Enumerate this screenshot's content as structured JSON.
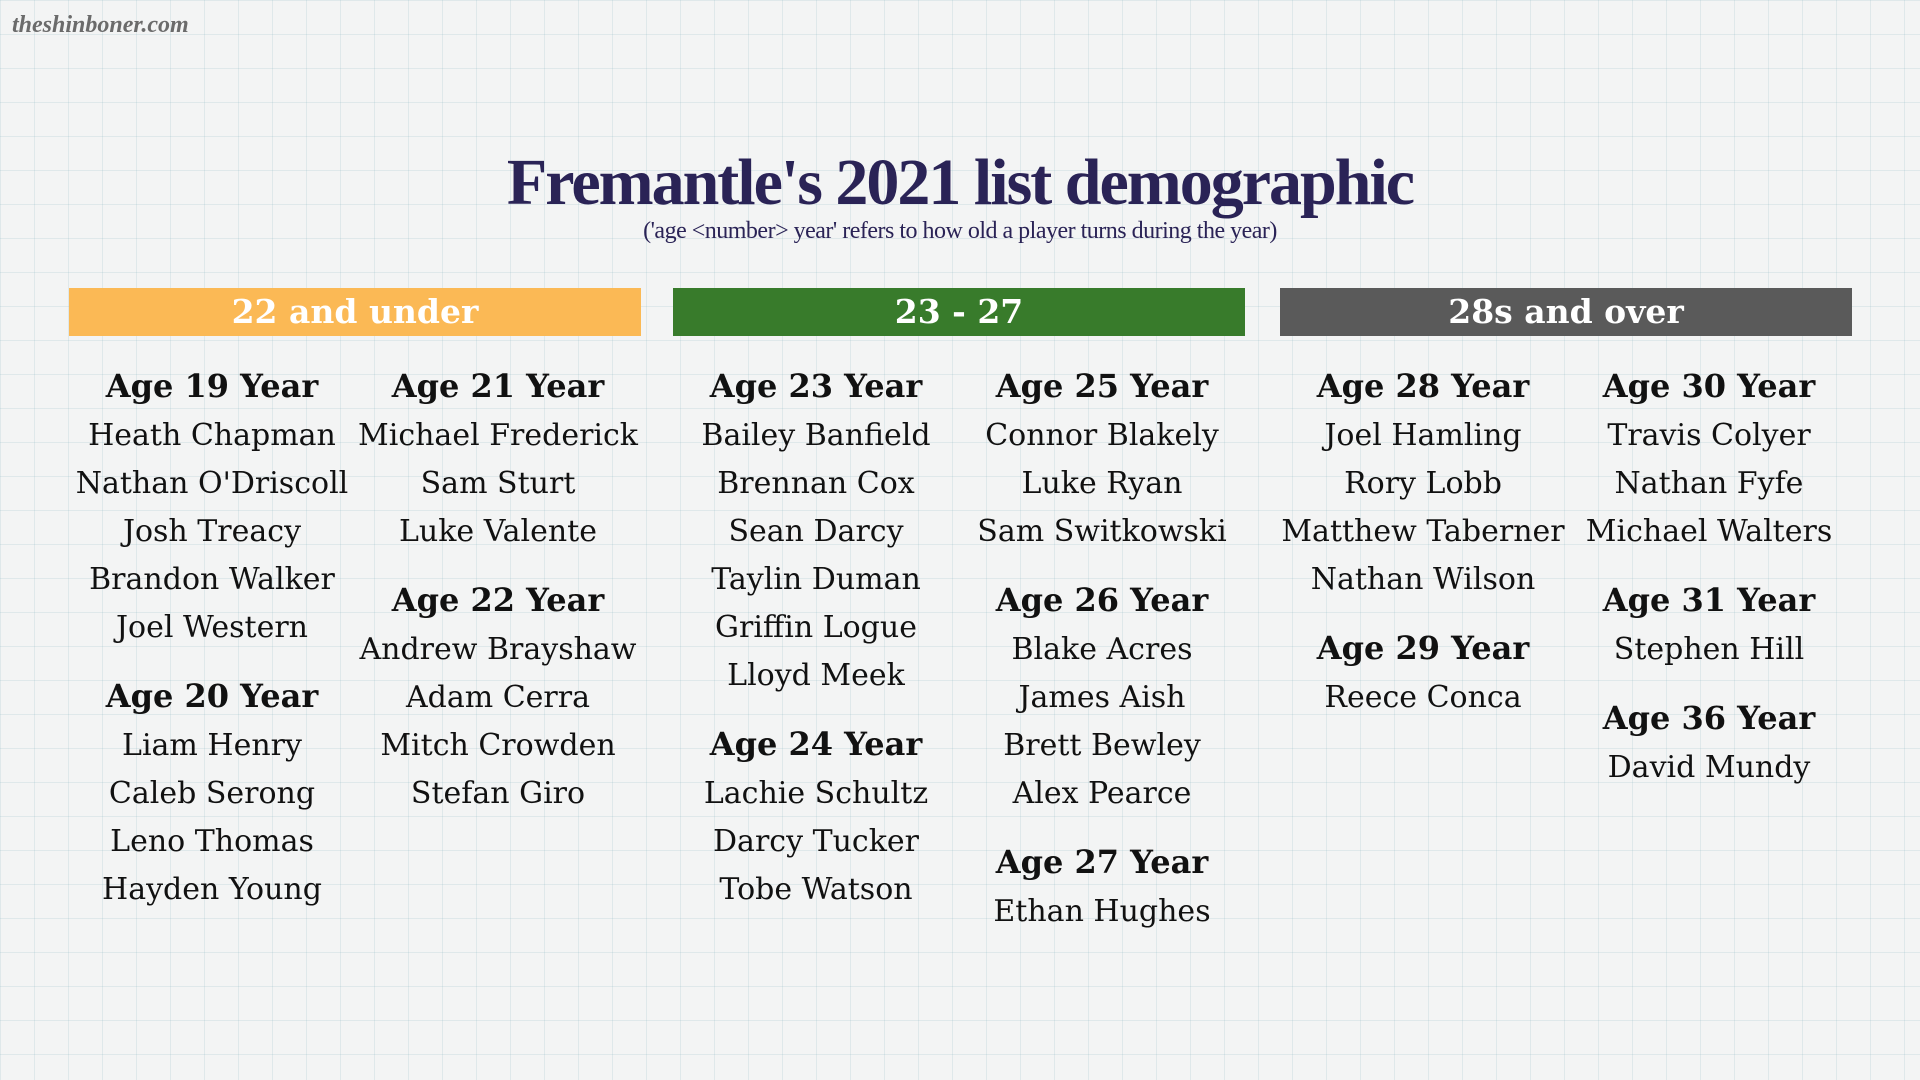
{
  "header": {
    "source": "theshinboner.com",
    "title": "Fremantle's 2021 list demographic",
    "subtitle": "('age <number> year' refers to how old a player turns during the year)"
  },
  "groups": [
    {
      "label": "22 and under",
      "columns": [
        {
          "ages": [
            {
              "heading": "Age 19 Year",
              "names": [
                "Heath Chapman",
                "Nathan O'Driscoll",
                "Josh Treacy",
                "Brandon Walker",
                "Joel Western"
              ]
            },
            {
              "heading": "Age 20 Year",
              "names": [
                "Liam Henry",
                "Caleb Serong",
                "Leno Thomas",
                "Hayden Young"
              ]
            }
          ]
        },
        {
          "ages": [
            {
              "heading": "Age 21 Year",
              "names": [
                "Michael Frederick",
                "Sam Sturt",
                "Luke Valente"
              ]
            },
            {
              "heading": "Age 22 Year",
              "names": [
                "Andrew Brayshaw",
                "Adam Cerra",
                "Mitch Crowden",
                "Stefan Giro"
              ]
            }
          ]
        }
      ]
    },
    {
      "label": "23 - 27",
      "columns": [
        {
          "ages": [
            {
              "heading": "Age 23 Year",
              "names": [
                "Bailey Banfield",
                "Brennan Cox",
                "Sean Darcy",
                "Taylin Duman",
                "Griffin Logue",
                "Lloyd Meek"
              ]
            },
            {
              "heading": "Age 24 Year",
              "names": [
                "Lachie Schultz",
                "Darcy Tucker",
                "Tobe Watson"
              ]
            }
          ]
        },
        {
          "ages": [
            {
              "heading": "Age 25 Year",
              "names": [
                "Connor Blakely",
                "Luke Ryan",
                "Sam Switkowski"
              ]
            },
            {
              "heading": "Age 26 Year",
              "names": [
                "Blake Acres",
                "James Aish",
                "Brett Bewley",
                "Alex Pearce"
              ]
            },
            {
              "heading": "Age 27 Year",
              "names": [
                "Ethan Hughes"
              ]
            }
          ]
        }
      ]
    },
    {
      "label": "28s and over",
      "columns": [
        {
          "ages": [
            {
              "heading": "Age 28 Year",
              "names": [
                "Joel Hamling",
                "Rory Lobb",
                "Matthew Taberner",
                "Nathan Wilson"
              ]
            },
            {
              "heading": "Age 29 Year",
              "names": [
                "Reece Conca"
              ]
            }
          ]
        },
        {
          "ages": [
            {
              "heading": "Age 30 Year",
              "names": [
                "Travis Colyer",
                "Nathan Fyfe",
                "Michael Walters"
              ]
            },
            {
              "heading": "Age 31 Year",
              "names": [
                "Stephen Hill"
              ]
            },
            {
              "heading": "Age 36 Year",
              "names": [
                "David Mundy"
              ]
            }
          ]
        }
      ]
    }
  ]
}
